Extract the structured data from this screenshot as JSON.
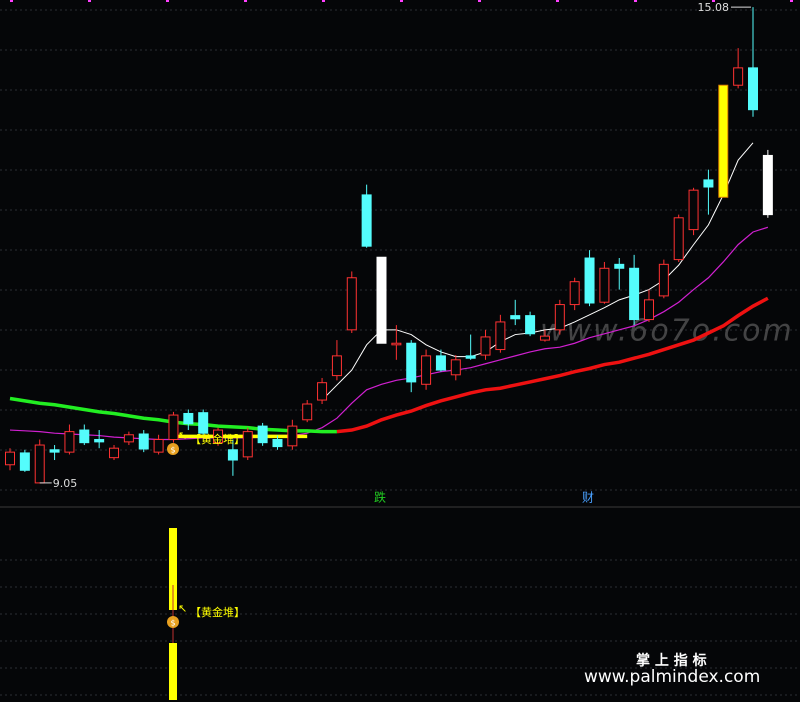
{
  "chart_data": {
    "type": "candlestick",
    "ylim": [
      8.77,
      15.17
    ],
    "grid": true,
    "hollow_color": "#ff3232",
    "open": [
      9.28,
      9.43,
      9.05,
      9.47,
      9.44,
      9.72,
      9.6,
      9.37,
      9.57,
      9.67,
      9.44,
      9.6,
      9.93,
      9.94,
      9.56,
      9.47,
      9.38,
      9.77,
      9.6,
      9.52,
      9.85,
      10.1,
      10.41,
      10.99,
      12.7,
      11.91,
      10.8,
      10.82,
      10.3,
      10.66,
      10.42,
      10.66,
      10.67,
      10.74,
      11.17,
      11.17,
      10.86,
      10.99,
      11.31,
      11.9,
      11.34,
      11.82,
      11.77,
      11.12,
      11.42,
      11.88,
      12.26,
      12.89,
      12.67,
      14.09,
      14.31,
      13.2
    ],
    "high": [
      9.49,
      9.47,
      9.6,
      9.53,
      9.79,
      9.79,
      9.72,
      9.53,
      9.7,
      9.72,
      9.66,
      9.95,
      9.98,
      9.98,
      9.75,
      9.6,
      9.75,
      9.81,
      9.65,
      9.85,
      10.1,
      10.38,
      10.86,
      11.73,
      12.83,
      11.91,
      11.05,
      10.86,
      10.74,
      10.74,
      10.67,
      10.93,
      10.99,
      11.18,
      11.37,
      11.22,
      10.99,
      11.37,
      11.65,
      12.0,
      11.85,
      11.9,
      11.94,
      11.5,
      11.88,
      12.45,
      12.79,
      13.02,
      14.09,
      14.56,
      15.08,
      13.27
    ],
    "low": [
      9.21,
      9.19,
      9.05,
      9.34,
      9.41,
      9.53,
      9.49,
      9.34,
      9.53,
      9.44,
      9.41,
      9.56,
      9.72,
      9.66,
      9.52,
      9.14,
      9.34,
      9.52,
      9.47,
      9.47,
      9.82,
      10.05,
      10.35,
      10.95,
      12.03,
      10.82,
      10.61,
      10.2,
      10.23,
      10.46,
      10.35,
      10.61,
      10.61,
      10.7,
      11.05,
      10.91,
      10.84,
      10.93,
      11.24,
      11.29,
      11.32,
      11.5,
      11.05,
      11.09,
      11.39,
      11.85,
      12.19,
      12.45,
      12.67,
      14.05,
      13.69,
      12.41
    ],
    "close": [
      9.44,
      9.21,
      9.53,
      9.44,
      9.7,
      9.56,
      9.57,
      9.49,
      9.66,
      9.48,
      9.6,
      9.91,
      9.8,
      9.68,
      9.72,
      9.34,
      9.7,
      9.56,
      9.51,
      9.77,
      10.05,
      10.32,
      10.66,
      11.65,
      12.05,
      10.82,
      10.82,
      10.33,
      10.66,
      10.48,
      10.61,
      10.63,
      10.9,
      11.09,
      11.13,
      10.94,
      10.91,
      11.31,
      11.6,
      11.33,
      11.77,
      11.77,
      11.12,
      11.37,
      11.82,
      12.41,
      12.76,
      12.8,
      14.09,
      14.31,
      13.78,
      12.45
    ],
    "colors": [
      "#ff3232",
      "#54fcfc",
      "#ff3232",
      "#54fcfc",
      "#ff3232",
      "#54fcfc",
      "#54fcfc",
      "#ff3232",
      "#ff3232",
      "#54fcfc",
      "#ff3232",
      "#ff3232",
      "#54fcfc",
      "#54fcfc",
      "#ff3232",
      "#54fcfc",
      "#ff3232",
      "#54fcfc",
      "#54fcfc",
      "#ff3232",
      "#ff3232",
      "#ff3232",
      "#ff3232",
      "#ff3232",
      "#54fcfc",
      "#ffffff",
      "#ff3232",
      "#54fcfc",
      "#ff3232",
      "#54fcfc",
      "#ff3232",
      "#54fcfc",
      "#ff3232",
      "#ff3232",
      "#54fcfc",
      "#54fcfc",
      "#ff3232",
      "#ff3232",
      "#ff3232",
      "#54fcfc",
      "#ff3232",
      "#54fcfc",
      "#54fcfc",
      "#ff3232",
      "#ff3232",
      "#ff3232",
      "#ff3232",
      "#54fcfc",
      "#ffff00",
      "#ff3232",
      "#54fcfc",
      "#ffffff"
    ],
    "series": [
      {
        "color": "#d020d0",
        "width": 1.2,
        "values": [
          9.72,
          9.71,
          9.7,
          9.68,
          9.67,
          9.66,
          9.65,
          9.63,
          9.62,
          9.61,
          9.6,
          9.6,
          9.61,
          9.62,
          9.62,
          9.62,
          9.62,
          9.63,
          9.63,
          9.65,
          9.68,
          9.75,
          9.87,
          10.06,
          10.23,
          10.3,
          10.35,
          10.38,
          10.42,
          10.46,
          10.48,
          10.51,
          10.56,
          10.61,
          10.66,
          10.71,
          10.75,
          10.77,
          10.82,
          10.89,
          10.94,
          10.99,
          11.04,
          11.12,
          11.22,
          11.34,
          11.5,
          11.65,
          11.85,
          12.07,
          12.23,
          12.29
        ]
      },
      {
        "color": "#22ee22",
        "width": 3.5,
        "values": [
          10.12,
          10.09,
          10.06,
          10.04,
          10.01,
          9.98,
          9.95,
          9.93,
          9.9,
          9.87,
          9.85,
          9.82,
          9.8,
          9.79,
          9.77,
          9.76,
          9.75,
          9.73,
          9.72,
          9.71,
          9.71,
          9.7,
          9.7,
          null,
          null,
          null,
          null,
          null,
          null,
          null,
          null,
          null,
          null,
          null,
          null,
          null,
          null,
          null,
          null,
          null,
          null,
          null,
          null,
          null,
          null,
          null,
          null,
          null,
          null,
          null,
          null,
          null
        ]
      },
      {
        "color": "#ffff00",
        "width": 3.5,
        "values": [
          null,
          null,
          null,
          null,
          null,
          null,
          null,
          null,
          null,
          null,
          null,
          9.64,
          9.64,
          9.64,
          9.64,
          9.64,
          9.64,
          9.64,
          9.64,
          9.64,
          9.64,
          null,
          null,
          null,
          null,
          null,
          null,
          null,
          null,
          null,
          null,
          null,
          null,
          null,
          null,
          null,
          null,
          null,
          null,
          null,
          null,
          null,
          null,
          null,
          null,
          null,
          null,
          null,
          null,
          null,
          null,
          null
        ]
      },
      {
        "color": "#ee1111",
        "width": 3.5,
        "values": [
          null,
          null,
          null,
          null,
          null,
          null,
          null,
          null,
          null,
          null,
          null,
          null,
          null,
          null,
          null,
          null,
          null,
          null,
          null,
          null,
          null,
          null,
          9.7,
          9.72,
          9.77,
          9.85,
          9.91,
          9.96,
          10.03,
          10.09,
          10.14,
          10.19,
          10.23,
          10.25,
          10.29,
          10.33,
          10.37,
          10.41,
          10.46,
          10.5,
          10.55,
          10.58,
          10.63,
          10.68,
          10.74,
          10.8,
          10.86,
          10.95,
          11.04,
          11.17,
          11.29,
          11.39
        ]
      },
      {
        "color": "#ffffff",
        "width": 1,
        "values": [
          null,
          null,
          null,
          null,
          null,
          null,
          null,
          null,
          null,
          null,
          null,
          null,
          null,
          null,
          null,
          null,
          null,
          null,
          null,
          null,
          null,
          10.1,
          10.29,
          10.48,
          10.8,
          10.99,
          10.99,
          10.93,
          10.8,
          10.71,
          10.65,
          10.65,
          10.71,
          10.84,
          10.93,
          10.95,
          10.99,
          11.01,
          11.09,
          11.18,
          11.27,
          11.37,
          11.43,
          11.5,
          11.62,
          11.81,
          12.07,
          12.32,
          12.7,
          13.14,
          13.36,
          null
        ]
      }
    ],
    "annotations": [
      {
        "text": "15.08",
        "value": 15.08
      },
      {
        "text": "9.05",
        "value": 9.05
      }
    ],
    "signals": [
      {
        "text": "跌",
        "color": "#22cc22"
      },
      {
        "text": "财",
        "color": "#4aa0ff"
      }
    ],
    "pattern_label": "【黄金堆】"
  },
  "indicator": {
    "label": "【黄金堆】"
  },
  "watermarks": {
    "site": "www.6o7o.com",
    "brand": "掌 上 指 标",
    "url": "www.palmindex.com"
  }
}
